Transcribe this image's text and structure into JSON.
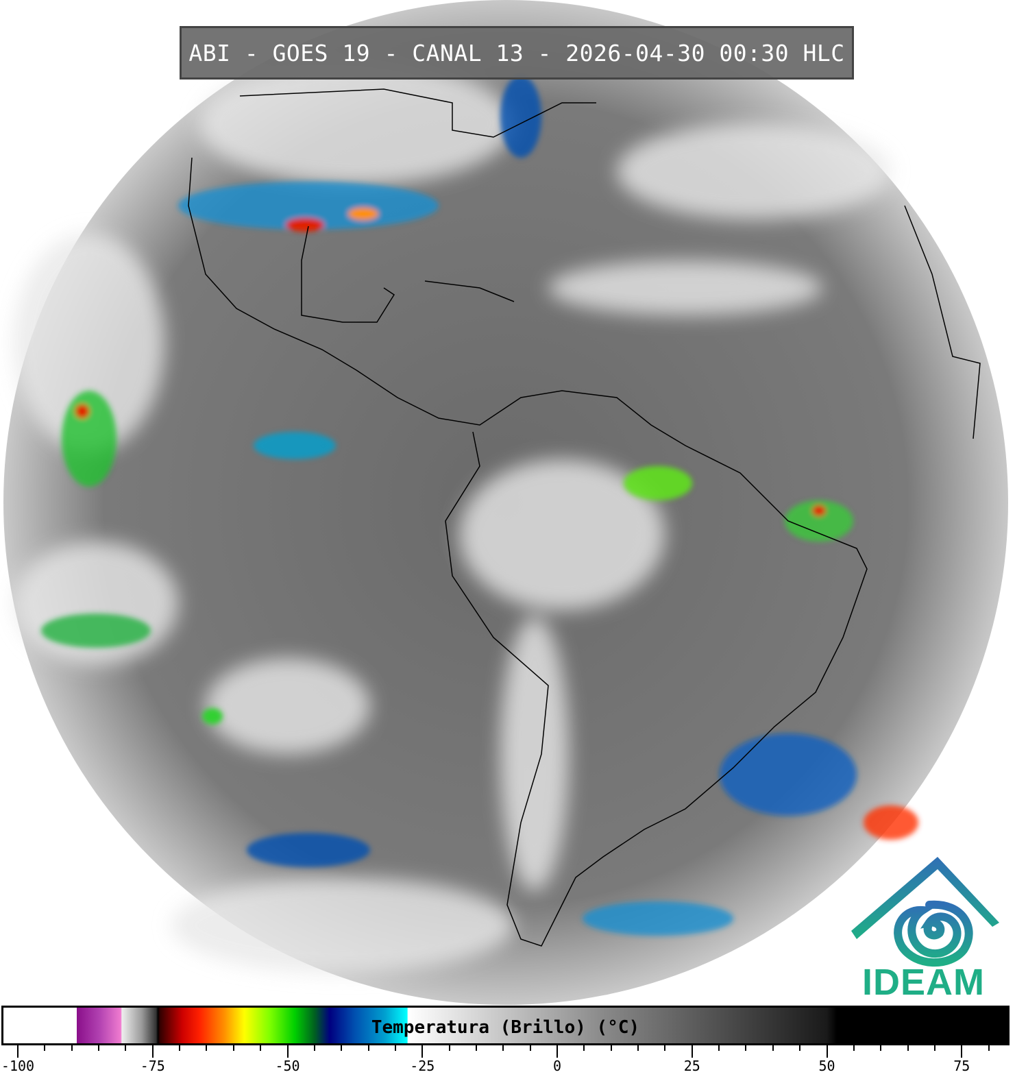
{
  "title": "ABI - GOES 19 - CANAL 13 - 2026-04-30 00:30 HLC",
  "logo": {
    "text": "IDEAM",
    "colors": {
      "roof": "#2f6fb5",
      "swirl": "#1fae86"
    }
  },
  "colorbar": {
    "label": "Temperatura (Brillo) (°C)",
    "range": [
      -100,
      83
    ],
    "major_ticks": [
      "-100",
      "-75",
      "-50",
      "-25",
      "0",
      "25",
      "50",
      "75"
    ],
    "major_tick_values": [
      -100,
      -75,
      -50,
      -25,
      0,
      25,
      50,
      75
    ],
    "minor_tick_step": 5
  },
  "map": {
    "projection": "full disk",
    "colors": {
      "ocean_gray": "#6e6e6e",
      "cloud_white": "#f2f2f2",
      "coast": "#000000"
    }
  }
}
